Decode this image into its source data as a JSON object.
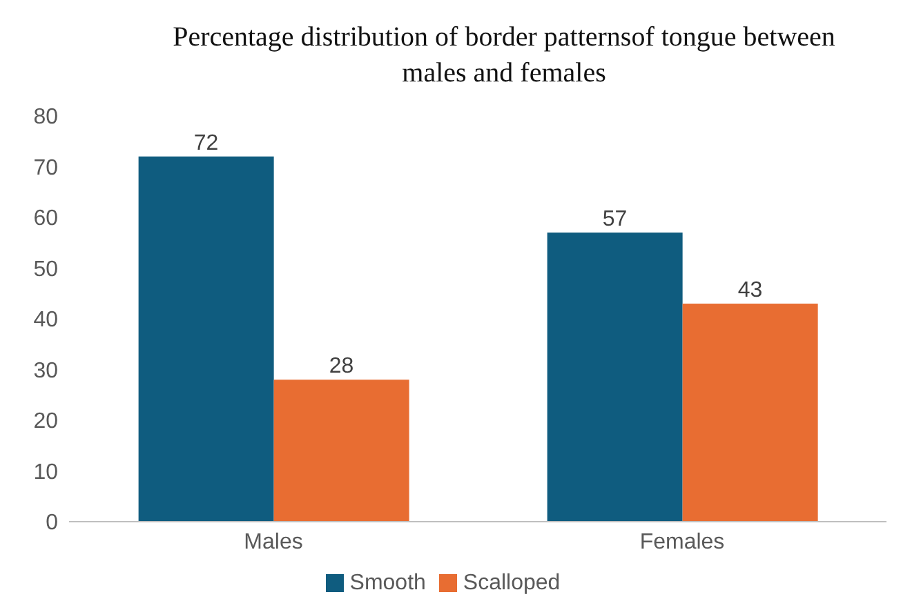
{
  "chart_data": {
    "type": "bar",
    "title": "Percentage distribution of border patternsof tongue between males and females",
    "categories": [
      "Males",
      "Females"
    ],
    "series": [
      {
        "name": "Smooth",
        "color": "#0f5c7f",
        "values": [
          72,
          57
        ]
      },
      {
        "name": "Scalloped",
        "color": "#e86d32",
        "values": [
          28,
          43
        ]
      }
    ],
    "ylim": [
      0,
      80
    ],
    "yticks": [
      0,
      10,
      20,
      30,
      40,
      50,
      60,
      70,
      80
    ],
    "data_labels": true,
    "legend": "bottom",
    "grid": false
  }
}
